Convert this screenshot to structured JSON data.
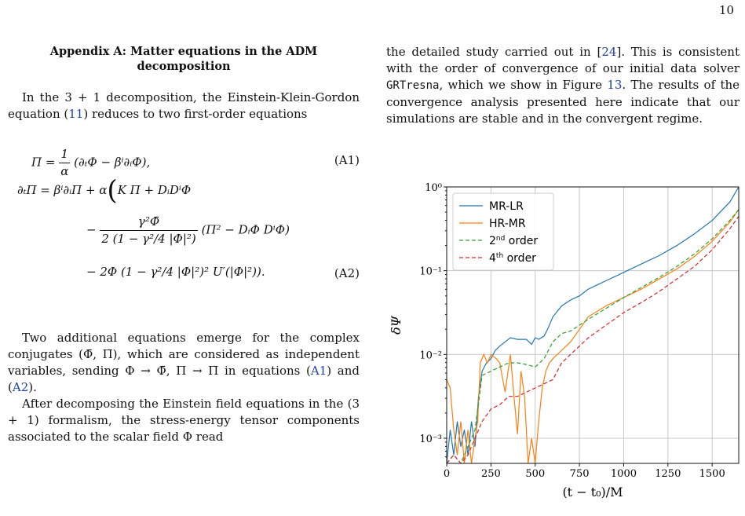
{
  "page_number": "10",
  "left": {
    "heading": "Appendix A: Matter equations in the ADM decomposition",
    "p1_a": "In the 3 + 1 decomposition, the Einstein-Klein-Gordon equation (",
    "p1_ref": "11",
    "p1_b": ") reduces to two first-order equations",
    "eq": {
      "l1": "Π = (∂ₜΦ − βⁱ∂ᵢΦ),",
      "l1_frac_num": "1",
      "l1_frac_den": "α",
      "l1_lhs": "Π =",
      "l1_rhs": "(∂ₜΦ − βⁱ∂ᵢΦ),",
      "n1": "(A1)",
      "l2": "∂ₜΠ = βⁱ∂ᵢΠ + α",
      "l2b": "K Π + DᵢDⁱΦ",
      "l3_num": "γ²Φ̄",
      "l3_den": "2 (1 − γ²/4 |Φ|²)",
      "l3_rhs": "(Π² − DᵢΦ DⁱΦ)",
      "l4": "− 2Φ (1 − γ²/4 |Φ|²)² U′(|Φ|²)).",
      "n2": "(A2)"
    },
    "p2_a": "Two additional equations emerge for the complex conjugates (Φ̄, Π̄), which are considered as independent variables, sending Φ → Φ̄, Π → Π̄ in equations (",
    "p2_ref1": "A1",
    "p2_mid": ") and (",
    "p2_ref2": "A2",
    "p2_b": ").",
    "p3": "After decomposing the Einstein field equations in the (3 + 1) formalism, the stress-energy tensor components associated to the scalar field Φ read"
  },
  "right": {
    "p1_a": "the detailed study carried out in [",
    "p1_ref": "24",
    "p1_b": "]. This is consistent with the order of convergence of our initial data solver ",
    "p1_code": "GRTresna",
    "p1_c": ", which we show in Figure ",
    "p1_fig": "13",
    "p1_d": ". The results of the convergence analysis presented here indicate that our simulations are stable and in the convergent regime."
  },
  "chart_data": {
    "type": "line",
    "xlabel": "(t − t₀)/M",
    "ylabel": "δΨ",
    "xlim": [
      0,
      1650
    ],
    "ylim_log10": [
      -3.3,
      0
    ],
    "yscale": "log",
    "grid": true,
    "legend_placement": "top-left",
    "x_ticks": [
      0,
      250,
      500,
      750,
      1000,
      1250,
      1500
    ],
    "y_ticks": [
      {
        "exp": 0,
        "label": "10⁰"
      },
      {
        "exp": -1,
        "label": "10⁻¹"
      },
      {
        "exp": -2,
        "label": "10⁻²"
      },
      {
        "exp": -3,
        "label": "10⁻³"
      }
    ],
    "series": [
      {
        "name": "MR-LR",
        "color": "#1f77b4",
        "dash": "none",
        "x": [
          0,
          20,
          40,
          60,
          80,
          100,
          120,
          140,
          160,
          180,
          200,
          225,
          250,
          275,
          300,
          330,
          360,
          400,
          450,
          480,
          500,
          520,
          550,
          570,
          600,
          650,
          700,
          750,
          800,
          900,
          1000,
          1100,
          1200,
          1300,
          1400,
          1500,
          1600,
          1650
        ],
        "log10y": [
          -3.3,
          -2.9,
          -3.2,
          -2.8,
          -3.1,
          -2.9,
          -3.2,
          -2.8,
          -3.1,
          -2.5,
          -2.2,
          -2.1,
          -2.05,
          -1.95,
          -1.9,
          -1.85,
          -1.8,
          -1.82,
          -1.82,
          -1.88,
          -1.8,
          -1.82,
          -1.78,
          -1.7,
          -1.55,
          -1.42,
          -1.35,
          -1.3,
          -1.22,
          -1.12,
          -1.02,
          -0.92,
          -0.82,
          -0.7,
          -0.56,
          -0.4,
          -0.18,
          0.0
        ]
      },
      {
        "name": "HR-MR",
        "color": "#ff7f0e",
        "dash": "none",
        "x": [
          0,
          20,
          40,
          60,
          80,
          100,
          120,
          140,
          160,
          175,
          190,
          210,
          230,
          250,
          280,
          300,
          330,
          360,
          380,
          400,
          420,
          440,
          460,
          480,
          500,
          520,
          540,
          560,
          580,
          600,
          650,
          700,
          750,
          800,
          900,
          1000,
          1100,
          1200,
          1300,
          1400,
          1500,
          1600,
          1650
        ],
        "log10y": [
          -2.3,
          -2.4,
          -2.9,
          -3.2,
          -2.8,
          -3.3,
          -2.9,
          -3.3,
          -3.0,
          -2.8,
          -2.1,
          -2.0,
          -2.1,
          -2.0,
          -2.05,
          -2.1,
          -2.45,
          -2.0,
          -2.5,
          -2.95,
          -2.2,
          -2.5,
          -3.3,
          -3.0,
          -3.3,
          -2.8,
          -2.4,
          -2.2,
          -2.1,
          -2.05,
          -1.95,
          -1.85,
          -1.7,
          -1.55,
          -1.42,
          -1.32,
          -1.22,
          -1.1,
          -0.98,
          -0.83,
          -0.65,
          -0.42,
          -0.27
        ]
      },
      {
        "name": "2nd order",
        "color": "#2ca02c",
        "dash": "5,3",
        "x": [
          0,
          40,
          80,
          120,
          160,
          200,
          250,
          300,
          350,
          400,
          450,
          500,
          550,
          600,
          650,
          700,
          750,
          800,
          900,
          1000,
          1100,
          1200,
          1300,
          1400,
          1500,
          1600,
          1650
        ],
        "log10y": [
          -3.3,
          -3.2,
          -3.3,
          -3.1,
          -2.9,
          -2.25,
          -2.2,
          -2.15,
          -2.1,
          -2.1,
          -2.12,
          -2.15,
          -2.05,
          -1.85,
          -1.75,
          -1.72,
          -1.65,
          -1.58,
          -1.45,
          -1.32,
          -1.2,
          -1.08,
          -0.95,
          -0.8,
          -0.62,
          -0.4,
          -0.27
        ]
      },
      {
        "name": "4th order",
        "color": "#d62728",
        "dash": "5,3",
        "x": [
          0,
          40,
          80,
          120,
          160,
          200,
          250,
          300,
          350,
          400,
          450,
          500,
          550,
          600,
          650,
          700,
          750,
          800,
          900,
          1000,
          1100,
          1200,
          1300,
          1400,
          1500,
          1600,
          1650
        ],
        "log10y": [
          -3.3,
          -3.2,
          -3.3,
          -3.2,
          -3.0,
          -2.8,
          -2.65,
          -2.6,
          -2.5,
          -2.5,
          -2.45,
          -2.4,
          -2.35,
          -2.3,
          -2.1,
          -2.0,
          -1.9,
          -1.8,
          -1.65,
          -1.5,
          -1.38,
          -1.25,
          -1.1,
          -0.95,
          -0.75,
          -0.5,
          -0.35
        ]
      }
    ],
    "legend_labels": [
      {
        "text": "MR-LR",
        "sup": ""
      },
      {
        "text": "HR-MR",
        "sup": ""
      },
      {
        "text": "2",
        "sup": "nd",
        "tail": " order"
      },
      {
        "text": "4",
        "sup": "th",
        "tail": " order"
      }
    ]
  }
}
